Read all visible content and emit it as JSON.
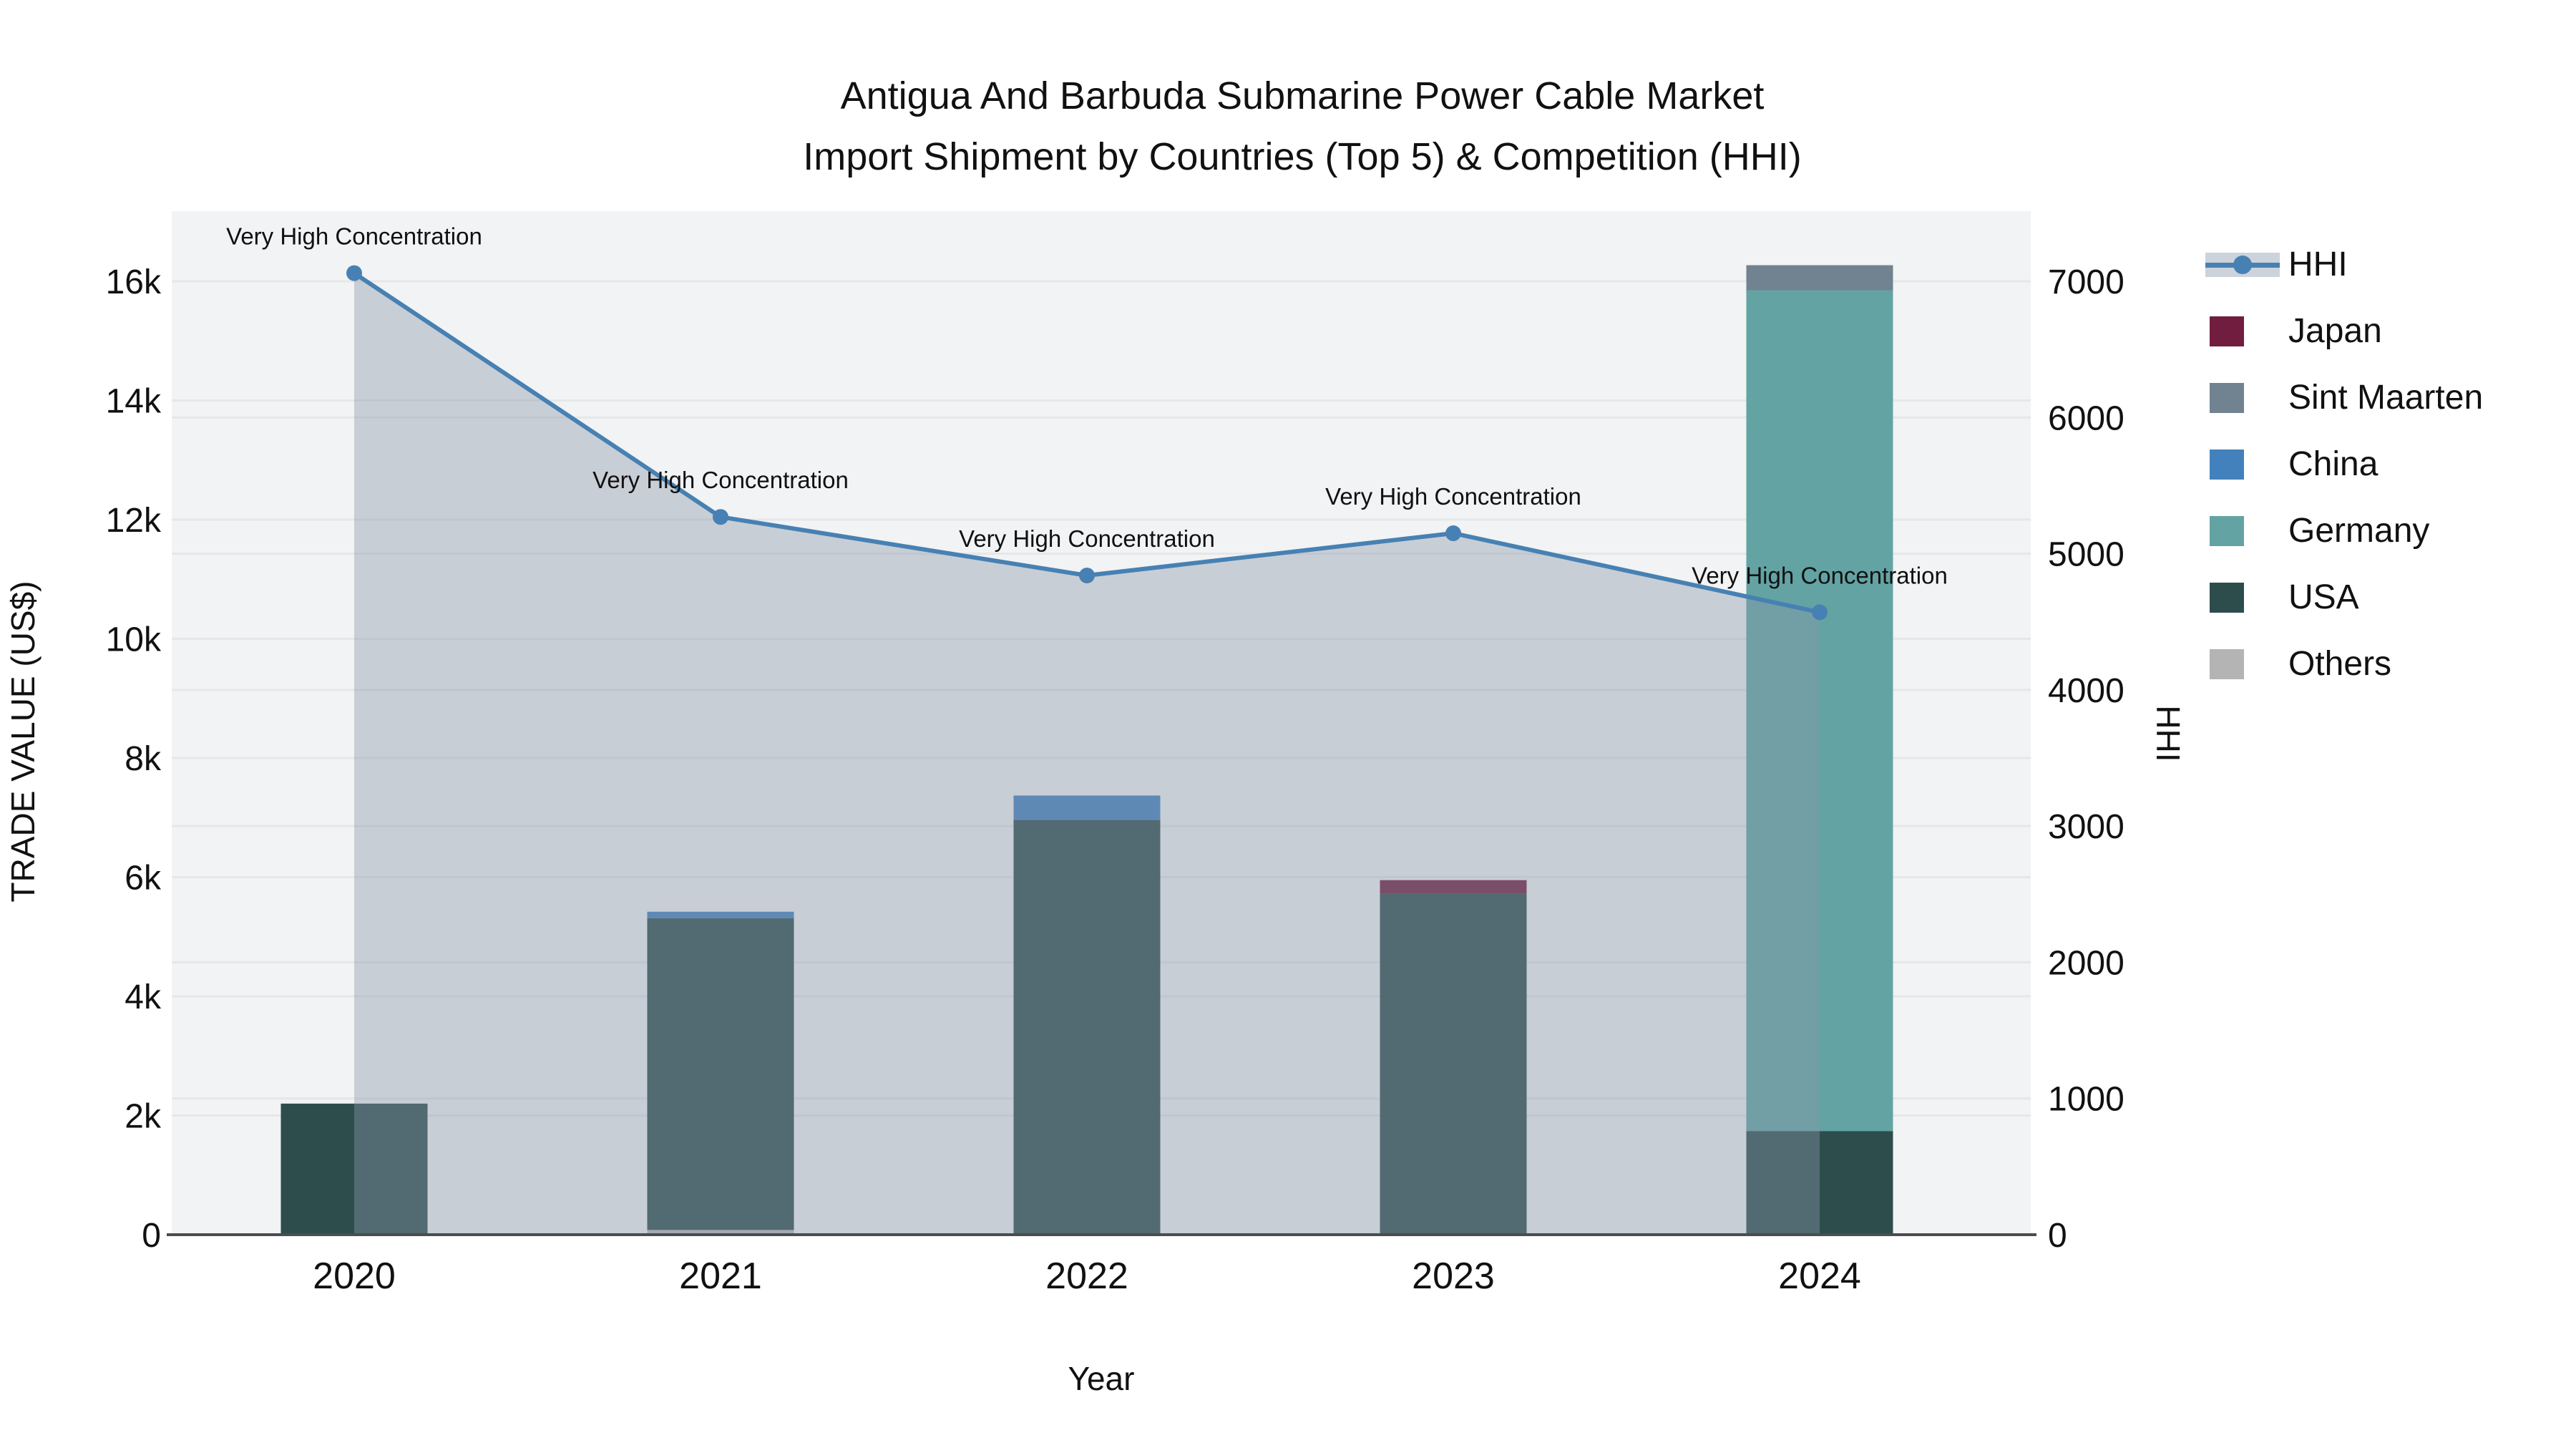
{
  "title": {
    "line1": "Antigua And Barbuda Submarine Power Cable Market",
    "line2": "Import Shipment by Countries (Top 5) & Competition (HHI)"
  },
  "axes": {
    "x": {
      "title": "Year",
      "categories": [
        "2020",
        "2021",
        "2022",
        "2023",
        "2024"
      ]
    },
    "y_left": {
      "title": "TRADE VALUE (US$)",
      "tick_labels": [
        "0",
        "2k",
        "4k",
        "6k",
        "8k",
        "10k",
        "12k",
        "14k",
        "16k"
      ],
      "min": 0,
      "max": 16000,
      "step": 2000
    },
    "y_right": {
      "title": "HHI",
      "tick_labels": [
        "0",
        "1000",
        "2000",
        "3000",
        "4000",
        "5000",
        "6000",
        "7000"
      ],
      "min": 0,
      "max": 7000,
      "step": 1000
    }
  },
  "legend": {
    "items": [
      {
        "label": "HHI",
        "type": "line",
        "color": "#4781b3"
      },
      {
        "label": "Japan",
        "type": "swatch",
        "color": "#701d3f"
      },
      {
        "label": "Sint Maarten",
        "type": "swatch",
        "color": "#718290"
      },
      {
        "label": "China",
        "type": "swatch",
        "color": "#4381bc"
      },
      {
        "label": "Germany",
        "type": "swatch",
        "color": "#63a3a3"
      },
      {
        "label": "USA",
        "type": "swatch",
        "color": "#2d4d4d"
      },
      {
        "label": "Others",
        "type": "swatch",
        "color": "#b4b4b4"
      }
    ]
  },
  "chart_data": {
    "type": "combo_stacked_bar_line",
    "categories": [
      "2020",
      "2021",
      "2022",
      "2023",
      "2024"
    ],
    "bar_axis": "left",
    "bar_unit": "US$",
    "stack_order_note": "bar_series listed bottom-to-top of the stack",
    "bar_series": [
      {
        "name": "Others",
        "color": "#b4b4b4",
        "values": [
          0,
          80,
          0,
          0,
          0
        ]
      },
      {
        "name": "USA",
        "color": "#2d4d4d",
        "values": [
          2200,
          5230,
          6960,
          5720,
          1740
        ]
      },
      {
        "name": "Germany",
        "color": "#63a3a3",
        "values": [
          0,
          0,
          0,
          0,
          14110
        ]
      },
      {
        "name": "China",
        "color": "#4381bc",
        "values": [
          0,
          110,
          410,
          0,
          0
        ]
      },
      {
        "name": "Sint Maarten",
        "color": "#718290",
        "values": [
          0,
          0,
          0,
          0,
          420
        ]
      },
      {
        "name": "Japan",
        "color": "#701d3f",
        "values": [
          0,
          0,
          0,
          230,
          0
        ]
      }
    ],
    "line_series": {
      "name": "HHI",
      "axis": "right",
      "color": "#4781b3",
      "fill": "rgba(138,150,170,0.40)",
      "values": [
        7060,
        5270,
        4840,
        5150,
        4570
      ]
    },
    "annotations": [
      "Very High Concentration",
      "Very High Concentration",
      "Very High Concentration",
      "Very High Concentration",
      "Very High Concentration"
    ],
    "ylim_left": [
      0,
      16000
    ],
    "ylim_right": [
      0,
      7000
    ],
    "grid": true,
    "legend_position": "right"
  },
  "colors": {
    "plot_bg": "#f2f3f4",
    "grid": "#e5e7e8",
    "axis_line": "#4a4d4e",
    "text": "#111111",
    "hhi_band": "#ccd3dc"
  }
}
